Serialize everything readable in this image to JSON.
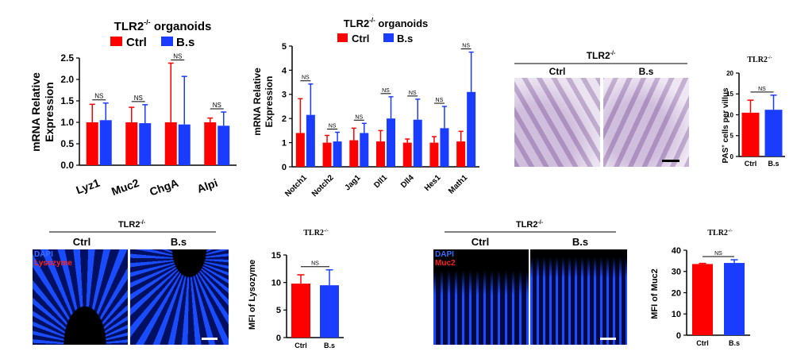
{
  "colors": {
    "ctrl": "#ff0000",
    "bs": "#1a3cff",
    "pas_stain": "#b9a2c8",
    "dapi": "#1a4cff",
    "red_stain": "#ff1a1a"
  },
  "panel_a": {
    "title": "TLR2",
    "title_sup": "-/-",
    "title_suffix": " organoids",
    "legend": [
      {
        "label": "Ctrl"
      },
      {
        "label": "B.s"
      }
    ],
    "ylabel_line1": "mRNA Relative",
    "ylabel_line2": "Expression"
  },
  "panel_b": {
    "title": "TLR2",
    "title_sup": "-/-",
    "title_suffix": " organoids",
    "legend": [
      {
        "label": "Ctrl"
      },
      {
        "label": "B.s"
      }
    ],
    "ylabel_line1": "mRNA Relative",
    "ylabel_line2": "Expression"
  },
  "panel_c": {
    "title": "TLR2",
    "title_sup": "-/-",
    "col_labels": [
      "Ctrl",
      "B.s"
    ]
  },
  "panel_d": {
    "title": "TLR2",
    "title_sup": "-/-",
    "ylabel_pre": "PAS",
    "ylabel_sup": "+",
    "ylabel_post": " cells per villus"
  },
  "panel_e": {
    "title": "TLR2",
    "title_sup": "-/-",
    "col_labels": [
      "Ctrl",
      "B.s"
    ],
    "stain_labels": [
      "DAPI",
      "Lysozyme"
    ]
  },
  "panel_f": {
    "title": "TLR2",
    "title_sup": "-/-",
    "ylabel": "MFI of Lysozyme"
  },
  "panel_g": {
    "title": "TLR2",
    "title_sup": "-/-",
    "col_labels": [
      "Ctrl",
      "B.s"
    ],
    "stain_labels": [
      "DAPI",
      "Muc2"
    ]
  },
  "panel_h": {
    "title": "TLR2",
    "title_sup": "-/-",
    "ylabel": "MFI of Muc2"
  },
  "chart_data": [
    {
      "id": "panel_a",
      "type": "bar",
      "categories": [
        "Lyz1",
        "Muc2",
        "ChgA",
        "Alpi"
      ],
      "series": [
        {
          "name": "Ctrl",
          "values": [
            1.0,
            1.0,
            1.0,
            1.0
          ],
          "errors": [
            0.42,
            0.35,
            1.38,
            0.1
          ]
        },
        {
          "name": "B.s",
          "values": [
            1.05,
            0.98,
            0.95,
            0.92
          ],
          "errors": [
            0.4,
            0.43,
            1.12,
            0.32
          ]
        }
      ],
      "significance": [
        "NS",
        "NS",
        "NS",
        "NS"
      ],
      "ylim": [
        0,
        2.5
      ],
      "yticks": [
        "0.0",
        "0.5",
        "1.0",
        "1.5",
        "2.0",
        "2.5"
      ]
    },
    {
      "id": "panel_b",
      "type": "bar",
      "categories": [
        "Notch1",
        "Notch2",
        "Jag1",
        "Dll1",
        "Dll4",
        "Hes1",
        "Math1"
      ],
      "series": [
        {
          "name": "Ctrl",
          "values": [
            1.4,
            1.0,
            1.1,
            1.05,
            1.0,
            1.0,
            1.05
          ],
          "errors": [
            1.42,
            0.3,
            0.5,
            0.45,
            0.15,
            0.25,
            0.42
          ]
        },
        {
          "name": "B.s",
          "values": [
            2.15,
            1.05,
            1.4,
            2.0,
            1.95,
            1.6,
            3.1
          ],
          "errors": [
            1.28,
            0.38,
            0.4,
            0.9,
            0.85,
            0.9,
            1.65
          ]
        }
      ],
      "significance": [
        "NS",
        "NS",
        "NS",
        "NS",
        "NS",
        "NS",
        "NS"
      ],
      "ylim": [
        0,
        5
      ],
      "yticks": [
        "0",
        "1",
        "2",
        "3",
        "4",
        "5"
      ]
    },
    {
      "id": "panel_d",
      "type": "bar",
      "categories": [
        "Ctrl",
        "B.s"
      ],
      "values": [
        10.5,
        11.2
      ],
      "errors": [
        3.0,
        3.5
      ],
      "significance": [
        "NS"
      ],
      "ylim": [
        0,
        20
      ],
      "yticks": [
        "0",
        "5",
        "10",
        "15",
        "20"
      ]
    },
    {
      "id": "panel_f",
      "type": "bar",
      "categories": [
        "Ctrl",
        "B.s"
      ],
      "values": [
        9.8,
        9.5
      ],
      "errors": [
        1.6,
        2.8
      ],
      "significance": [
        "NS"
      ],
      "ylim": [
        0,
        15
      ],
      "yticks": [
        "0",
        "5",
        "10",
        "15"
      ]
    },
    {
      "id": "panel_h",
      "type": "bar",
      "categories": [
        "Ctrl",
        "B.s"
      ],
      "values": [
        33.5,
        34.0
      ],
      "errors": [
        0.3,
        1.5
      ],
      "significance": [
        "NS"
      ],
      "ylim": [
        0,
        40
      ],
      "yticks": [
        "0",
        "10",
        "20",
        "30",
        "40"
      ]
    }
  ]
}
